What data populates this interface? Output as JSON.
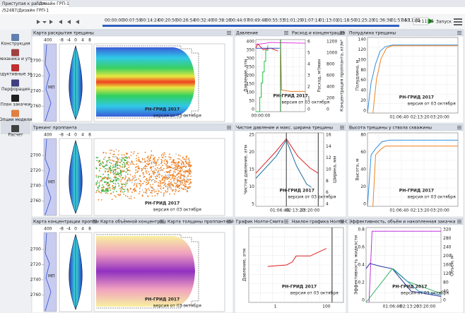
{
  "tabs": [
    "Приступая к работе",
    "Дизайн ГРП-1"
  ],
  "path": "/52487/Дизайн ГРП-1",
  "timeline": [
    "00:00:00",
    "00:07:59",
    "00:14:24",
    "00:20:50",
    "00:26:54",
    "00:32:40",
    "00:38:16",
    "00:44:07",
    "00:49:48",
    "00:55:33",
    "01:01:29",
    "01:07:14",
    "01:13:01",
    "01:18:50",
    "01:25:20",
    "01:36:38",
    "01:57:57"
  ],
  "time_end": "04:11:05",
  "time_select": "04:11:05",
  "run": "Запуск",
  "sidebar": [
    "Конструкция",
    "Геомеханика и утечки",
    "Продуктивные зоны",
    "Перфорация",
    "План закачки",
    "Опции модели",
    "Расчет"
  ],
  "map": {
    "top_value": 400,
    "width_ticks": [
      -8,
      -4,
      0,
      4,
      8
    ],
    "depth_ticks": [
      2700,
      2720,
      2740,
      2760
    ],
    "zone_label": "МП",
    "watermark": "РН-ГРИД 2017",
    "watermark_sub": "версия от 03 октября"
  },
  "panels": [
    {
      "titles": [
        "Карта раскрытия трещины"
      ]
    },
    {
      "titles": [
        "Давление",
        "Расход и концентрация"
      ],
      "yticks": [
        400,
        350,
        300,
        250,
        200,
        150,
        100,
        50,
        0
      ],
      "y_label": "Давление, атм",
      "y2ticks": [
        6,
        5,
        4,
        3,
        2,
        1,
        0
      ],
      "y2_label": "Расход, м³/мин",
      "y3ticks": [
        1200,
        1000,
        800,
        600,
        400,
        200,
        0
      ],
      "y3_label": "Концентрация проппанта, кг/м³",
      "xticks": [
        "00:00:00"
      ]
    },
    {
      "titles": [
        "Полудлина трещины"
      ],
      "yticks": [
        140,
        120,
        100,
        80,
        60,
        40,
        20,
        0
      ],
      "y_label": "Полудлина, м",
      "xticks": [
        "01:06:40",
        "02:13:20",
        "03:20:00"
      ]
    },
    {
      "titles": [
        "Трекинг проппанта"
      ]
    },
    {
      "titles": [
        "Чистое давление и макс. ширина трещины"
      ],
      "yticks": [
        25,
        20,
        15,
        10,
        5
      ],
      "y_label": "Чистое давление, атм",
      "y2ticks": [
        16,
        14,
        12,
        10,
        8,
        6,
        4
      ],
      "y2_label": "Ширина, мм",
      "xticks": [
        "01:06:40",
        "02:13:20",
        "03:20:00"
      ]
    },
    {
      "titles": [
        "Высота трещины у ствола скважины"
      ],
      "yticks": [
        80,
        60,
        40,
        20,
        0
      ],
      "y_label": "Высота, м",
      "xticks": [
        "01:06:40",
        "02:13:20",
        "03:20:00"
      ]
    },
    {
      "titles": [
        "Карта концентрации проппанта в",
        "Карта объёмной концентрации п",
        "Карта толщины проппантной пач"
      ]
    },
    {
      "titles": [
        "График Нолти-Смита",
        "Наклон графика Нолти-Сми"
      ],
      "y_label": "Давление, атм",
      "xticks": [
        1,
        100
      ]
    },
    {
      "titles": [
        "Эффективность, объём и накопленная закачка"
      ],
      "yticks": [
        0.8,
        0.6,
        0.4,
        0.2,
        0
      ],
      "y_label": "Эффективность жидкости",
      "y2ticks": [
        320,
        280,
        240,
        200,
        160,
        120,
        80,
        40,
        0
      ],
      "y2_label": "Объем, м³",
      "xticks": [
        "01:06:40",
        "02:13:20",
        "03:20:00"
      ]
    }
  ]
}
